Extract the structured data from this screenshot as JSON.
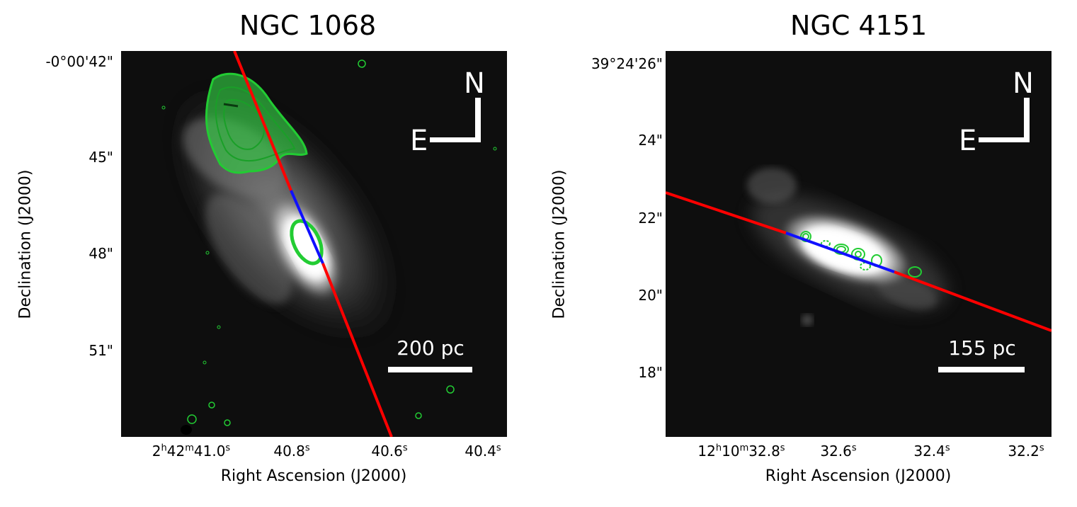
{
  "panels": [
    {
      "title": "NGC 1068",
      "y_ticks": [
        "-0°00'42\"",
        "45\"",
        "48\"",
        "51\""
      ],
      "x_ticks": [
        {
          "main": "2",
          "sup1": "h",
          "mid": "42",
          "sup2": "m",
          "rest": "41.0",
          "sup3": "s"
        },
        {
          "main": "40.8",
          "sup3": "s"
        },
        {
          "main": "40.6",
          "sup3": "s"
        },
        {
          "main": "40.4",
          "sup3": "s"
        }
      ],
      "xlabel": "Right Ascension (J2000)",
      "ylabel": "Declination (J2000)",
      "compass_n": "N",
      "compass_e": "E",
      "scale_label": "200 pc"
    },
    {
      "title": "NGC 4151",
      "y_ticks": [
        "39°24'26\"",
        "24\"",
        "22\"",
        "20\"",
        "18\""
      ],
      "x_ticks": [
        {
          "main": "12",
          "sup1": "h",
          "mid": "10",
          "sup2": "m",
          "rest": "32.8",
          "sup3": "s"
        },
        {
          "main": "32.6",
          "sup3": "s"
        },
        {
          "main": "32.4",
          "sup3": "s"
        },
        {
          "main": "32.2",
          "sup3": "s"
        }
      ],
      "xlabel": "Right Ascension (J2000)",
      "ylabel": "Declination (J2000)",
      "compass_n": "N",
      "compass_e": "E",
      "scale_label": "155 pc"
    }
  ],
  "colors": {
    "background": "#0e0e0e",
    "slit_red": "#ff0000",
    "slit_blue": "#1010ff",
    "contour_green": "#22cc33",
    "overlay_white": "#ffffff"
  }
}
